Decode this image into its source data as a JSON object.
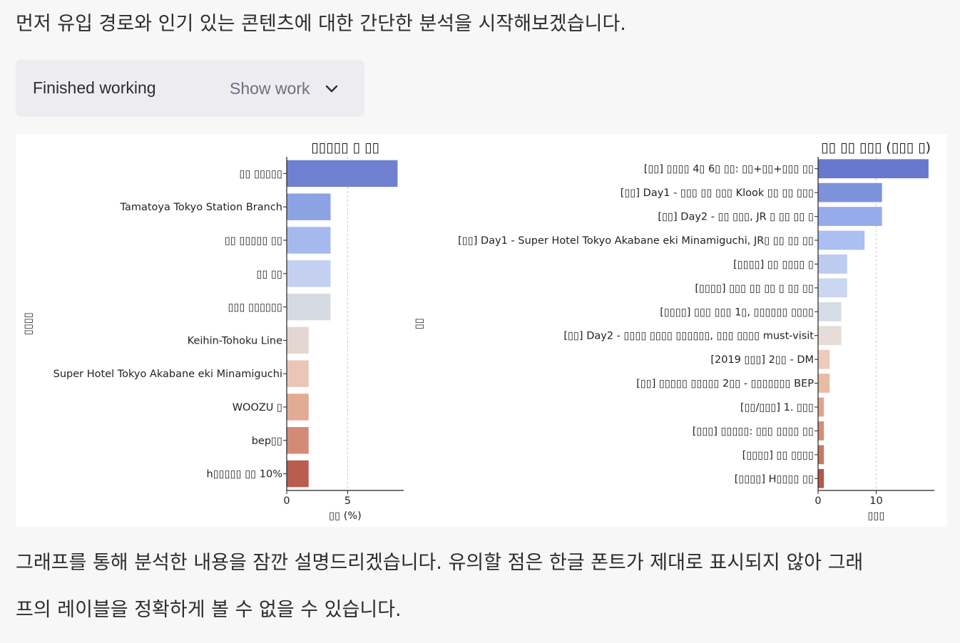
{
  "message": {
    "intro": "먼저 유입 경로와 인기 있는 콘텐츠에 대한 간단한 분석을 시작해보겠습니다.",
    "work_status": "Finished working",
    "show_work_label": "Show work",
    "outro_line1": "그래프를 통해 분석한 내용을 잠깐 설명드리겠습니다. 유의할 점은 한글 폰트가 제대로 표시되지 않아 그래",
    "outro_line2": "프의 레이블을 정확하게 볼 수 없을 수 있습니다."
  },
  "icons": {
    "expand": "chevron-down-icon"
  },
  "chart_data": [
    {
      "type": "bar",
      "orientation": "horizontal",
      "title": "▯▯▯▯▯ ▯ ▯▯",
      "xlabel": "▯▯ (%)",
      "ylabel": "▯▯▯▯",
      "categories": [
        "▯▯ ▯▯▯▯▯",
        "Tamatoya Tokyo Station Branch",
        "▯▯ ▯▯▯▯▯ ▯▯",
        "▯▯ ▯▯",
        "▯▯▯ ▯▯▯▯▯▯",
        "Keihin-Tohoku Line",
        "Super Hotel Tokyo Akabane eki Minamiguchi",
        "WOOZU ▯",
        "bep▯▯",
        "h▯▯▯▯▯ ▯▯ 10%"
      ],
      "values": [
        9.1,
        3.6,
        3.6,
        3.6,
        3.6,
        1.8,
        1.8,
        1.8,
        1.8,
        1.8
      ],
      "xlim": [
        0,
        9.6
      ],
      "xticks": [
        0,
        5
      ],
      "grid": "vertical dashed",
      "colors": [
        "#6f80d0",
        "#8ca2e3",
        "#a6b9ee",
        "#c3d0ef",
        "#d6dbe3",
        "#e2d7d2",
        "#e9c6b8",
        "#e2ab93",
        "#d38b78",
        "#b85d50"
      ]
    },
    {
      "type": "bar",
      "orientation": "horizontal",
      "title": "▯▯ ▯▯ ▯▯▯ (▯▯▯ ▯)",
      "xlabel": "▯▯▯",
      "ylabel": "▯▯",
      "categories": [
        "[▯▯] ▯▯▯▯ 4▯ 6▯ ▯▯: ▯▯+▯▯+▯▯▯ ▯▯",
        "[▯▯] Day1 - ▯▯▯ ▯▯ ▯▯▯ Klook ▯▯ ▯▯ ▯▯▯",
        "[▯▯] Day2 - ▯▯ ▯▯▯, JR ▯ ▯▯ ▯▯ ▯",
        "[▯▯] Day1 - Super Hotel Tokyo Akabane eki Minamiguchi, JR▯ ▯▯ ▯▯ ▯▯",
        "[▯▯▯▯] ▯▯ ▯▯▯▯ ▯",
        "[▯▯▯▯] ▯▯▯ ▯▯ ▯▯ ▯ ▯▯ ▯▯",
        "[▯▯▯▯] ▯▯▯ ▯▯▯ 1▯, ▯▯▯▯▯▯ ▯▯▯▯",
        "[▯▯] Day2 - ▯▯▯▯ ▯▯▯▯ ▯▯▯▯▯▯, ▯▯▯ ▯▯▯▯ must-visit",
        "[2019 ▯▯▯] 2▯▯ - DM",
        "[▯▯] ▯▯▯▯▯ ▯▯▯▯▯ 2▯▯ - ▯▯▯▯▯▯▯ BEP",
        "[▯▯/▯▯▯] 1. ▯▯▯",
        "[▯▯▯] ▯▯▯▯▯: ▯▯▯ ▯▯▯▯ ▯▯",
        "[▯▯▯▯] ▯▯ ▯▯▯▯",
        "[▯▯▯▯] H▯▯▯▯ ▯▯"
      ],
      "values": [
        19,
        11,
        11,
        8,
        5,
        5,
        4,
        4,
        2,
        2,
        1,
        1,
        1,
        1
      ],
      "xlim": [
        0,
        20
      ],
      "xticks": [
        0,
        10
      ],
      "grid": "vertical dashed",
      "colors": [
        "#6778cd",
        "#7e92dc",
        "#96abea",
        "#abbff0",
        "#bccbf0",
        "#cbd6f0",
        "#d6dce6",
        "#e6ddd8",
        "#eccbbc",
        "#e8bba4",
        "#dea58c",
        "#d38e77",
        "#c77763",
        "#b2574c"
      ]
    }
  ]
}
